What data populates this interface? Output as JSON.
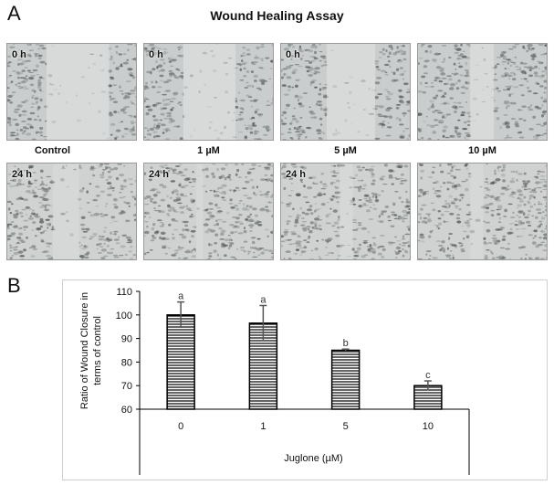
{
  "panel_a": {
    "letter": "A",
    "title": "Wound Healing Assay",
    "top_row_time": "0 h",
    "bottom_row_time": "24 h",
    "conditions": [
      "Control",
      "1 µM",
      "5 µM",
      "10 µM"
    ]
  },
  "panel_b": {
    "letter": "B"
  },
  "chart_data": {
    "type": "bar",
    "categories": [
      "0",
      "1",
      "5",
      "10"
    ],
    "values": [
      100,
      96.5,
      85,
      70
    ],
    "error_bars": [
      5.5,
      7.5,
      0.5,
      2
    ],
    "significance_letters": [
      "a",
      "a",
      "b",
      "c"
    ],
    "xlabel": "Juglone (µM)",
    "ylabel": "Ratio of Wound Closure in terms of control",
    "ylabel_lines": [
      "Ratio of Wound Closure in",
      "terms of control"
    ],
    "ylim": [
      60,
      110
    ],
    "yticks": [
      60,
      70,
      80,
      90,
      100,
      110
    ],
    "bar_fill": "horizontal-stripes",
    "colors": {
      "bar_stroke": "#000000",
      "stripe": "#000000",
      "error_bar": "#555555"
    }
  }
}
